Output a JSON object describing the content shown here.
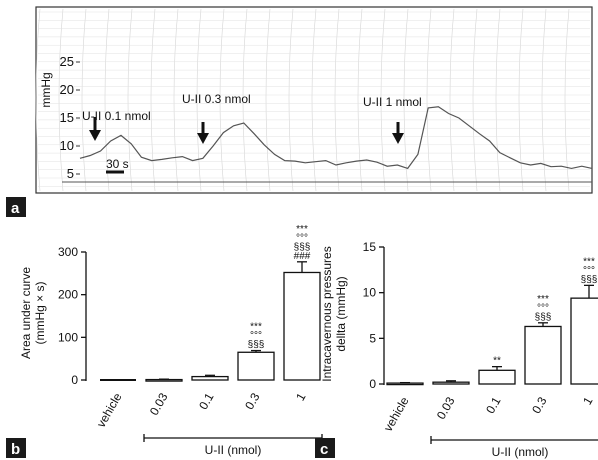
{
  "panels": {
    "a": "a",
    "b": "b",
    "c": "c"
  },
  "chart_data": [
    {
      "type": "line",
      "panel": "a",
      "ylabel": "mmHg",
      "ylim": [
        5,
        26
      ],
      "yticks": [
        "25",
        "20",
        "15",
        "10",
        "5"
      ],
      "scalebar": "30 s",
      "annotations": [
        "U-II 0.1 nmol",
        "U-II 0.3 nmol",
        "U-II 1 nmol"
      ],
      "x": [
        0,
        2,
        4,
        6,
        8,
        10,
        12,
        14,
        16,
        18,
        20,
        22,
        24,
        26,
        28,
        30,
        32,
        34,
        36,
        38,
        40,
        42,
        44,
        46,
        48,
        50,
        52,
        54,
        56,
        58,
        60,
        62,
        64,
        66,
        68,
        70,
        72,
        74,
        76,
        78,
        80,
        82,
        84,
        86,
        88,
        90,
        92,
        94,
        96,
        98,
        100
      ],
      "values": [
        7.8,
        8.3,
        9.1,
        10.9,
        11.9,
        10.4,
        8.0,
        7.4,
        7.6,
        7.9,
        8.1,
        7.4,
        7.8,
        10.0,
        12.4,
        13.6,
        14.1,
        12.2,
        10.2,
        8.5,
        7.4,
        7.3,
        7.0,
        7.2,
        7.4,
        6.6,
        7.0,
        7.3,
        7.5,
        7.1,
        6.4,
        6.6,
        6.0,
        8.5,
        16.8,
        17.0,
        15.8,
        15.0,
        13.6,
        12.2,
        10.9,
        8.8,
        7.9,
        7.0,
        6.6,
        6.9,
        6.3,
        6.4,
        6.0,
        6.4,
        6.0
      ]
    },
    {
      "type": "bar",
      "panel": "b",
      "ylabel": "Area under curve\n(mmHg × s)",
      "ylim": [
        0,
        300
      ],
      "yticks": [
        "0",
        "100",
        "200",
        "300"
      ],
      "xlabel": "U-II (nmol)",
      "categories": [
        "vehicle",
        "0.03",
        "0.1",
        "0.3",
        "1"
      ],
      "values": [
        0,
        1,
        8,
        65,
        252
      ],
      "errors": [
        0,
        1,
        3,
        4,
        25
      ],
      "significance": [
        "",
        "",
        "",
        "***\n°°°\n§§§",
        "***\n°°°\n§§§\n###"
      ]
    },
    {
      "type": "bar",
      "panel": "c",
      "ylabel": "Intracavernous pressures\ndellta (mmHg)",
      "ylim": [
        0,
        15
      ],
      "yticks": [
        "0",
        "5",
        "10",
        "15"
      ],
      "xlabel": "U-II (nmol)",
      "categories": [
        "vehicle",
        "0.03",
        "0.1",
        "0.3",
        "1"
      ],
      "values": [
        0.1,
        0.2,
        1.5,
        6.3,
        9.4
      ],
      "errors": [
        0.05,
        0.15,
        0.4,
        0.4,
        1.4
      ],
      "significance": [
        "",
        "",
        "**",
        "***\n°°°\n§§§",
        "***\n°°°\n§§§"
      ]
    }
  ]
}
